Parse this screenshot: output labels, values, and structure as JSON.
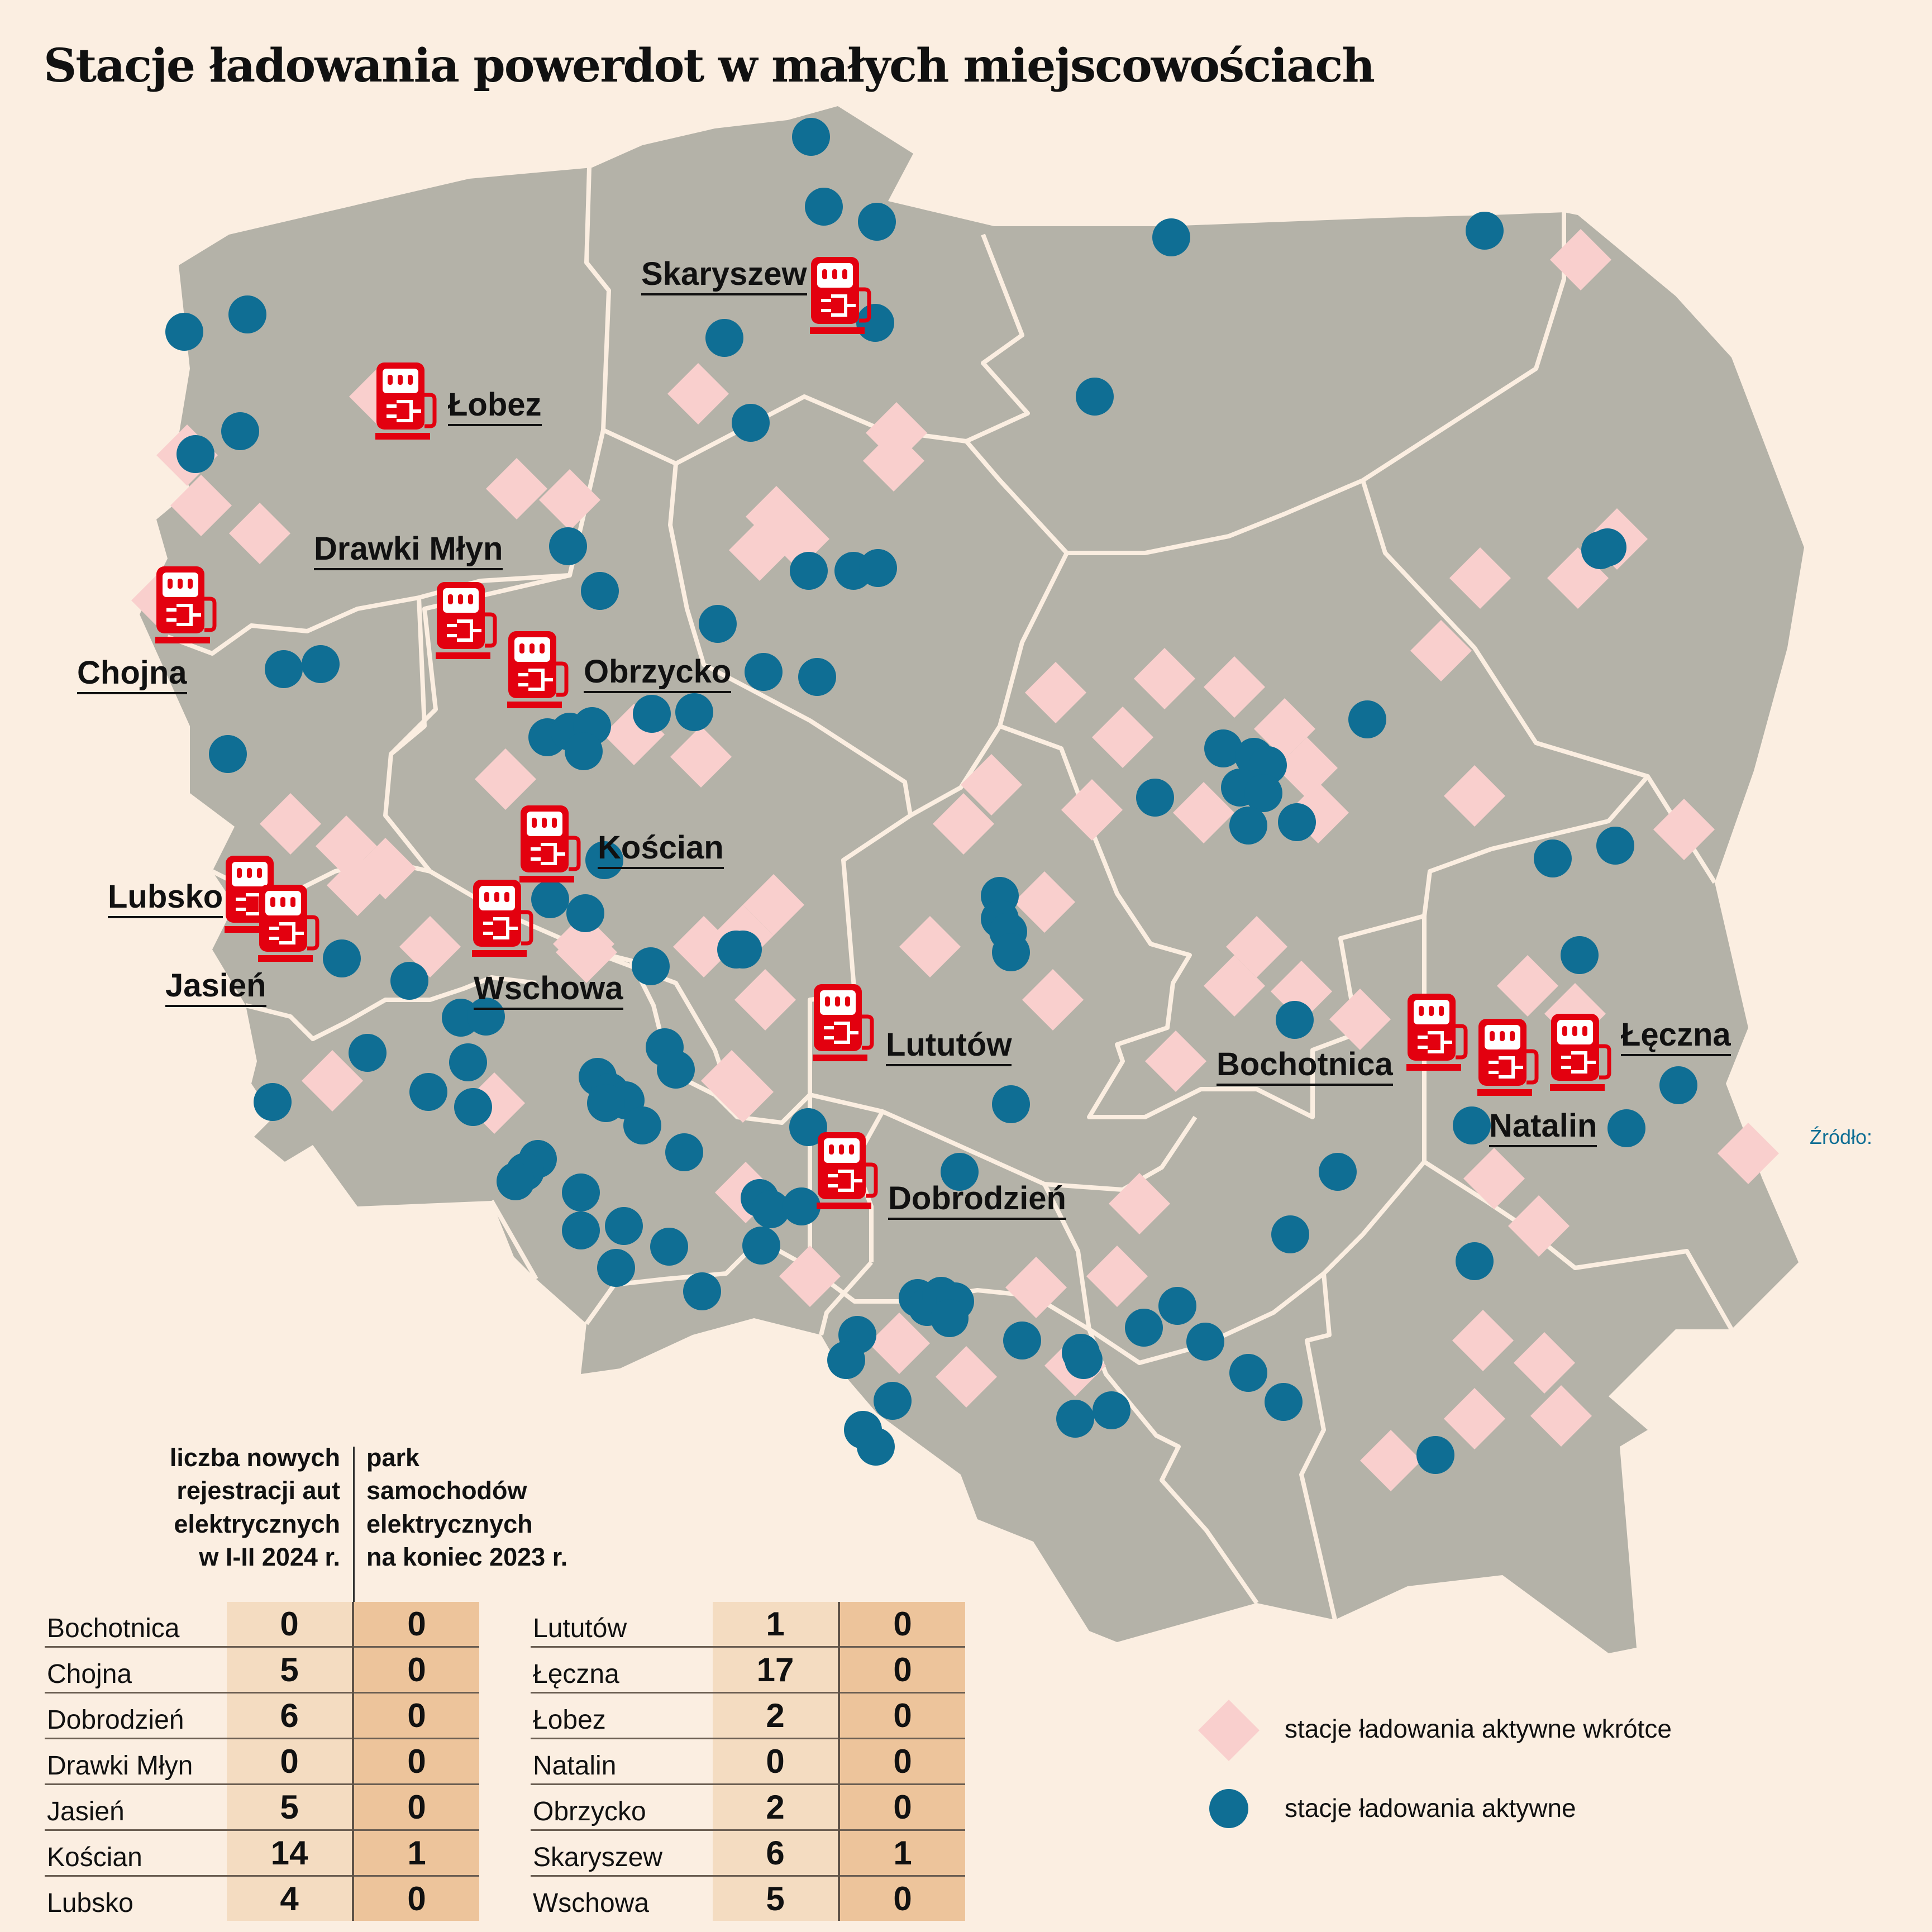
{
  "title": "Stacje ładowania powerdot w małych miejscowościach",
  "source_label": "Źródło:",
  "colors": {
    "background": "#fbeee1",
    "land": "#b4b2a8",
    "borders": "#fbeee1",
    "active_station": "#0f6e94",
    "soon_station": "#f9cfcd",
    "charger_icon": "#e3000f"
  },
  "towns": [
    {
      "name": "Skaryszew"
    },
    {
      "name": "Łobez"
    },
    {
      "name": "Drawki Młyn"
    },
    {
      "name": "Chojna"
    },
    {
      "name": "Obrzycko"
    },
    {
      "name": "Kościan"
    },
    {
      "name": "Lubsko"
    },
    {
      "name": "Jasień"
    },
    {
      "name": "Wschowa"
    },
    {
      "name": "Lututów"
    },
    {
      "name": "Dobrodzień"
    },
    {
      "name": "Bochotnica"
    },
    {
      "name": "Natalin"
    },
    {
      "name": "Łęczna"
    }
  ],
  "legend": {
    "soon": "stacje ładowania aktywne wkrótce",
    "active": "stacje ładowania aktywne"
  },
  "table": {
    "header_new": "liczba nowych\nrejestracji aut\nelektrycznych\nw I-II 2024 r.",
    "header_park": "park\nsamochodów\nelektrycznych\nna koniec 2023 r.",
    "left_rows": [
      {
        "city": "Bochotnica",
        "new": "0",
        "park": "0"
      },
      {
        "city": "Chojna",
        "new": "5",
        "park": "0"
      },
      {
        "city": "Dobrodzień",
        "new": "6",
        "park": "0"
      },
      {
        "city": "Drawki Młyn",
        "new": "0",
        "park": "0"
      },
      {
        "city": "Jasień",
        "new": "5",
        "park": "0"
      },
      {
        "city": "Kościan",
        "new": "14",
        "park": "1"
      },
      {
        "city": "Lubsko",
        "new": "4",
        "park": "0"
      }
    ],
    "right_rows": [
      {
        "city": "Lututów",
        "new": "1",
        "park": "0"
      },
      {
        "city": "Łęczna",
        "new": "17",
        "park": "0"
      },
      {
        "city": "Łobez",
        "new": "2",
        "park": "0"
      },
      {
        "city": "Natalin",
        "new": "0",
        "park": "0"
      },
      {
        "city": "Obrzycko",
        "new": "2",
        "park": "0"
      },
      {
        "city": "Skaryszew",
        "new": "6",
        "park": "1"
      },
      {
        "city": "Wschowa",
        "new": "5",
        "park": "0"
      }
    ]
  }
}
